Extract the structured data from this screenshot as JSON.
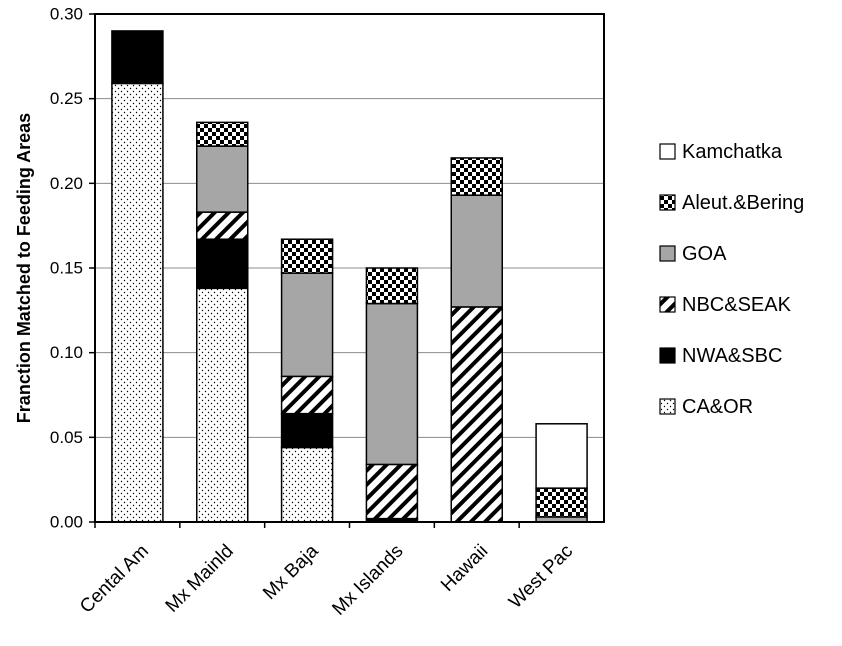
{
  "chart_data": {
    "type": "bar",
    "stacked": true,
    "title": "",
    "xlabel": "",
    "ylabel": "Franction Matched to Feeding Areas",
    "ylim": [
      0,
      0.3
    ],
    "yticks": [
      "0.00",
      "0.05",
      "0.10",
      "0.15",
      "0.20",
      "0.25",
      "0.30"
    ],
    "grid": true,
    "legend_position": "right",
    "categories": [
      "Cental Am",
      "Mx Mainld",
      "Mx Baja",
      "Mx Islands",
      "Hawaii",
      "West Pac"
    ],
    "series": [
      {
        "name": "CA&OR",
        "pattern": "dots",
        "color": "#ffffff",
        "values": [
          0.259,
          0.138,
          0.044,
          0.0,
          0.0,
          0.0
        ]
      },
      {
        "name": "NWA&SBC",
        "pattern": "solid",
        "color": "#000000",
        "values": [
          0.031,
          0.029,
          0.02,
          0.002,
          0.0,
          0.0
        ]
      },
      {
        "name": "NBC&SEAK",
        "pattern": "diagonal",
        "color": "#ffffff",
        "values": [
          0.0,
          0.016,
          0.022,
          0.032,
          0.127,
          0.0
        ]
      },
      {
        "name": "GOA",
        "pattern": "solid",
        "color": "#a6a6a6",
        "values": [
          0.0,
          0.039,
          0.061,
          0.095,
          0.066,
          0.003
        ]
      },
      {
        "name": "Aleut.&Bering",
        "pattern": "checker",
        "color": "#000000",
        "values": [
          0.0,
          0.014,
          0.02,
          0.021,
          0.022,
          0.017
        ]
      },
      {
        "name": "Kamchatka",
        "pattern": "solid",
        "color": "#ffffff",
        "values": [
          0.0,
          0.0,
          0.0,
          0.0,
          0.0,
          0.038
        ]
      }
    ]
  }
}
